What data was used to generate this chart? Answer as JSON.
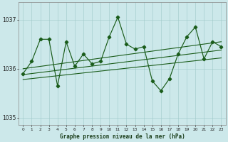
{
  "title": "Graphe pression niveau de la mer (hPa)",
  "bg_color": "#cce8ea",
  "line_color": "#1a5c1a",
  "grid_color": "#9fc8c8",
  "x_values": [
    0,
    1,
    2,
    3,
    4,
    5,
    6,
    7,
    8,
    9,
    10,
    11,
    12,
    13,
    14,
    15,
    16,
    17,
    18,
    19,
    20,
    21,
    22,
    23
  ],
  "y_values": [
    1035.9,
    1036.15,
    1036.6,
    1036.6,
    1035.65,
    1036.55,
    1036.05,
    1036.3,
    1036.1,
    1036.15,
    1036.65,
    1037.05,
    1036.5,
    1036.4,
    1036.45,
    1035.75,
    1035.55,
    1035.8,
    1036.3,
    1036.65,
    1036.85,
    1036.2,
    1036.55,
    1036.45
  ],
  "trend_lines": [
    [
      1035.78,
      1036.22
    ],
    [
      1035.88,
      1036.38
    ],
    [
      1036.0,
      1036.55
    ]
  ],
  "ylim_min": 1034.85,
  "ylim_max": 1037.35,
  "yticks": [
    1035,
    1036,
    1037
  ],
  "xlim_min": -0.5,
  "xlim_max": 23.5
}
